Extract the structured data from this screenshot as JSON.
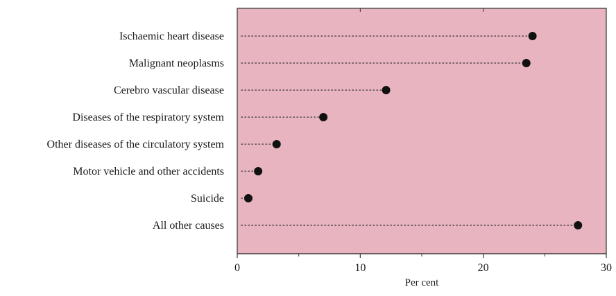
{
  "chart_data": {
    "type": "scatter",
    "style": "dot-plot",
    "categories": [
      "Ischaemic heart disease",
      "Malignant neoplasms",
      "Cerebro vascular disease",
      "Diseases of the respiratory system",
      "Other diseases of the circulatory system",
      "Motor vehicle and other accidents",
      "Suicide",
      "All other causes"
    ],
    "values": [
      24.0,
      23.5,
      12.1,
      7.0,
      3.2,
      1.7,
      0.9,
      27.7
    ],
    "xlabel": "Per cent",
    "xlim": [
      0,
      30
    ],
    "xticks": [
      "0",
      "10",
      "20",
      "30"
    ],
    "grid": false,
    "colors": {
      "plot_background": "#e8b4c0",
      "marker": "#111111",
      "leader_line": "#333333",
      "axis": "#333333"
    }
  }
}
